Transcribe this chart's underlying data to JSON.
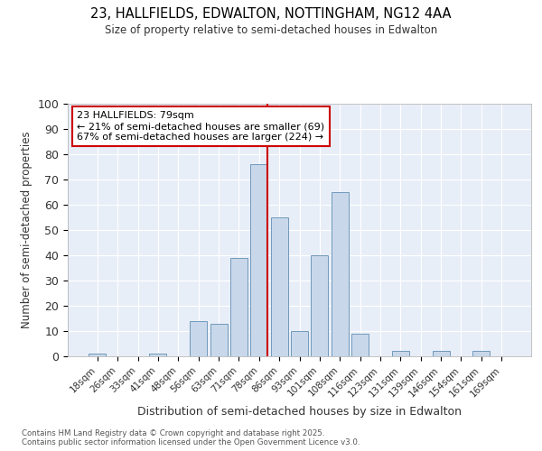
{
  "title1": "23, HALLFIELDS, EDWALTON, NOTTINGHAM, NG12 4AA",
  "title2": "Size of property relative to semi-detached houses in Edwalton",
  "xlabel": "Distribution of semi-detached houses by size in Edwalton",
  "ylabel": "Number of semi-detached properties",
  "categories": [
    "18sqm",
    "26sqm",
    "33sqm",
    "41sqm",
    "48sqm",
    "56sqm",
    "63sqm",
    "71sqm",
    "78sqm",
    "86sqm",
    "93sqm",
    "101sqm",
    "108sqm",
    "116sqm",
    "123sqm",
    "131sqm",
    "139sqm",
    "146sqm",
    "154sqm",
    "161sqm",
    "169sqm"
  ],
  "values": [
    1,
    0,
    0,
    1,
    0,
    14,
    13,
    39,
    76,
    55,
    10,
    40,
    65,
    9,
    0,
    2,
    0,
    2,
    0,
    2,
    0
  ],
  "bar_color": "#c8d8ea",
  "bar_edge_color": "#7099bb",
  "vline_color": "#cc0000",
  "annotation_title": "23 HALLFIELDS: 79sqm",
  "annotation_line1": "← 21% of semi-detached houses are smaller (69)",
  "annotation_line2": "67% of semi-detached houses are larger (224) →",
  "annotation_box_color": "#ffffff",
  "annotation_box_edge": "#cc0000",
  "ylim": [
    0,
    100
  ],
  "yticks": [
    0,
    10,
    20,
    30,
    40,
    50,
    60,
    70,
    80,
    90,
    100
  ],
  "bg_color": "#e8eef8",
  "grid_color": "#ffffff",
  "footer": "Contains HM Land Registry data © Crown copyright and database right 2025.\nContains public sector information licensed under the Open Government Licence v3.0."
}
